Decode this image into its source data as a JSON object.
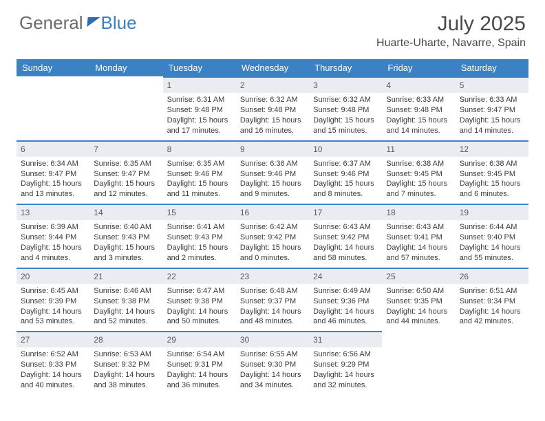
{
  "logo": {
    "text1": "General",
    "text2": "Blue"
  },
  "title": "July 2025",
  "location": "Huarte-Uharte, Navarre, Spain",
  "colors": {
    "header_bg": "#3b82c4",
    "header_text": "#ffffff",
    "daynum_bg": "#e9edf1",
    "border": "#3b82c4",
    "body_text": "#3a3a3a",
    "title_text": "#4a4a4a"
  },
  "weekdays": [
    "Sunday",
    "Monday",
    "Tuesday",
    "Wednesday",
    "Thursday",
    "Friday",
    "Saturday"
  ],
  "weeks": [
    [
      null,
      null,
      {
        "n": "1",
        "sunrise": "6:31 AM",
        "sunset": "9:48 PM",
        "daylight": "15 hours and 17 minutes."
      },
      {
        "n": "2",
        "sunrise": "6:32 AM",
        "sunset": "9:48 PM",
        "daylight": "15 hours and 16 minutes."
      },
      {
        "n": "3",
        "sunrise": "6:32 AM",
        "sunset": "9:48 PM",
        "daylight": "15 hours and 15 minutes."
      },
      {
        "n": "4",
        "sunrise": "6:33 AM",
        "sunset": "9:48 PM",
        "daylight": "15 hours and 14 minutes."
      },
      {
        "n": "5",
        "sunrise": "6:33 AM",
        "sunset": "9:47 PM",
        "daylight": "15 hours and 14 minutes."
      }
    ],
    [
      {
        "n": "6",
        "sunrise": "6:34 AM",
        "sunset": "9:47 PM",
        "daylight": "15 hours and 13 minutes."
      },
      {
        "n": "7",
        "sunrise": "6:35 AM",
        "sunset": "9:47 PM",
        "daylight": "15 hours and 12 minutes."
      },
      {
        "n": "8",
        "sunrise": "6:35 AM",
        "sunset": "9:46 PM",
        "daylight": "15 hours and 11 minutes."
      },
      {
        "n": "9",
        "sunrise": "6:36 AM",
        "sunset": "9:46 PM",
        "daylight": "15 hours and 9 minutes."
      },
      {
        "n": "10",
        "sunrise": "6:37 AM",
        "sunset": "9:46 PM",
        "daylight": "15 hours and 8 minutes."
      },
      {
        "n": "11",
        "sunrise": "6:38 AM",
        "sunset": "9:45 PM",
        "daylight": "15 hours and 7 minutes."
      },
      {
        "n": "12",
        "sunrise": "6:38 AM",
        "sunset": "9:45 PM",
        "daylight": "15 hours and 6 minutes."
      }
    ],
    [
      {
        "n": "13",
        "sunrise": "6:39 AM",
        "sunset": "9:44 PM",
        "daylight": "15 hours and 4 minutes."
      },
      {
        "n": "14",
        "sunrise": "6:40 AM",
        "sunset": "9:43 PM",
        "daylight": "15 hours and 3 minutes."
      },
      {
        "n": "15",
        "sunrise": "6:41 AM",
        "sunset": "9:43 PM",
        "daylight": "15 hours and 2 minutes."
      },
      {
        "n": "16",
        "sunrise": "6:42 AM",
        "sunset": "9:42 PM",
        "daylight": "15 hours and 0 minutes."
      },
      {
        "n": "17",
        "sunrise": "6:43 AM",
        "sunset": "9:42 PM",
        "daylight": "14 hours and 58 minutes."
      },
      {
        "n": "18",
        "sunrise": "6:43 AM",
        "sunset": "9:41 PM",
        "daylight": "14 hours and 57 minutes."
      },
      {
        "n": "19",
        "sunrise": "6:44 AM",
        "sunset": "9:40 PM",
        "daylight": "14 hours and 55 minutes."
      }
    ],
    [
      {
        "n": "20",
        "sunrise": "6:45 AM",
        "sunset": "9:39 PM",
        "daylight": "14 hours and 53 minutes."
      },
      {
        "n": "21",
        "sunrise": "6:46 AM",
        "sunset": "9:38 PM",
        "daylight": "14 hours and 52 minutes."
      },
      {
        "n": "22",
        "sunrise": "6:47 AM",
        "sunset": "9:38 PM",
        "daylight": "14 hours and 50 minutes."
      },
      {
        "n": "23",
        "sunrise": "6:48 AM",
        "sunset": "9:37 PM",
        "daylight": "14 hours and 48 minutes."
      },
      {
        "n": "24",
        "sunrise": "6:49 AM",
        "sunset": "9:36 PM",
        "daylight": "14 hours and 46 minutes."
      },
      {
        "n": "25",
        "sunrise": "6:50 AM",
        "sunset": "9:35 PM",
        "daylight": "14 hours and 44 minutes."
      },
      {
        "n": "26",
        "sunrise": "6:51 AM",
        "sunset": "9:34 PM",
        "daylight": "14 hours and 42 minutes."
      }
    ],
    [
      {
        "n": "27",
        "sunrise": "6:52 AM",
        "sunset": "9:33 PM",
        "daylight": "14 hours and 40 minutes."
      },
      {
        "n": "28",
        "sunrise": "6:53 AM",
        "sunset": "9:32 PM",
        "daylight": "14 hours and 38 minutes."
      },
      {
        "n": "29",
        "sunrise": "6:54 AM",
        "sunset": "9:31 PM",
        "daylight": "14 hours and 36 minutes."
      },
      {
        "n": "30",
        "sunrise": "6:55 AM",
        "sunset": "9:30 PM",
        "daylight": "14 hours and 34 minutes."
      },
      {
        "n": "31",
        "sunrise": "6:56 AM",
        "sunset": "9:29 PM",
        "daylight": "14 hours and 32 minutes."
      },
      null,
      null
    ]
  ],
  "labels": {
    "sunrise": "Sunrise:",
    "sunset": "Sunset:",
    "daylight": "Daylight:"
  }
}
